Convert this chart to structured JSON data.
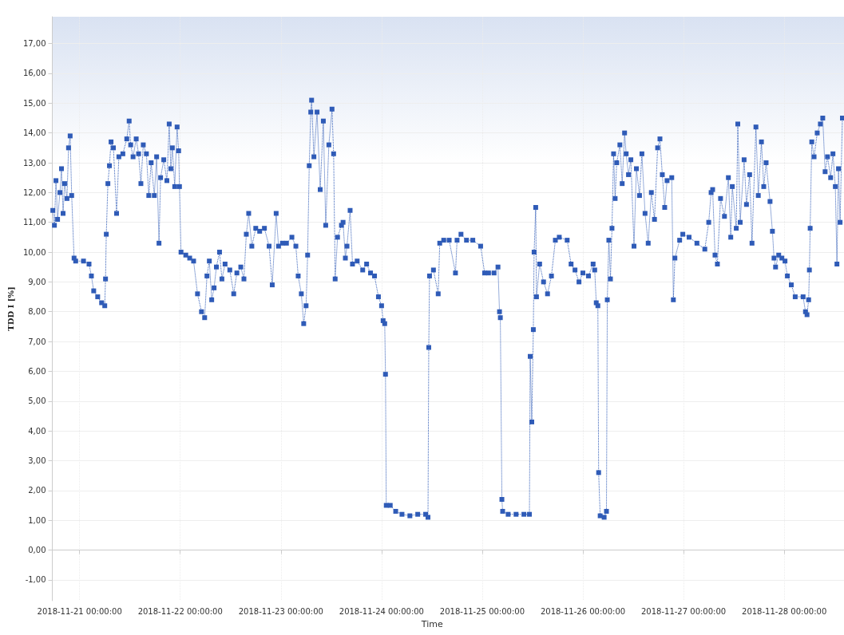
{
  "chart_data": {
    "type": "line",
    "xlabel": "Time",
    "ylabel": "TDD I [%]",
    "xlim": [
      "2018-11-20T17:30",
      "2018-11-28T14:15"
    ],
    "xticks": [
      {
        "value": "2018-11-21",
        "label": "2018-11-21 00:00:00"
      },
      {
        "value": "2018-11-22",
        "label": "2018-11-22 00:00:00"
      },
      {
        "value": "2018-11-23",
        "label": "2018-11-23 00:00:00"
      },
      {
        "value": "2018-11-24",
        "label": "2018-11-24 00:00:00"
      },
      {
        "value": "2018-11-25",
        "label": "2018-11-25 00:00:00"
      },
      {
        "value": "2018-11-26",
        "label": "2018-11-26 00:00:00"
      },
      {
        "value": "2018-11-27",
        "label": "2018-11-27 00:00:00"
      },
      {
        "value": "2018-11-28",
        "label": "2018-11-28 00:00:00"
      }
    ],
    "ylim": [
      -1.7,
      17.9
    ],
    "yticks": [
      {
        "value": -1,
        "label": "-1,00"
      },
      {
        "value": 0,
        "label": "0,00"
      },
      {
        "value": 1,
        "label": "1,00"
      },
      {
        "value": 2,
        "label": "2,00"
      },
      {
        "value": 3,
        "label": "3,00"
      },
      {
        "value": 4,
        "label": "4,00"
      },
      {
        "value": 5,
        "label": "5,00"
      },
      {
        "value": 6,
        "label": "6,00"
      },
      {
        "value": 7,
        "label": "7,00"
      },
      {
        "value": 8,
        "label": "8,00"
      },
      {
        "value": 9,
        "label": "9,00"
      },
      {
        "value": 10,
        "label": "10,00"
      },
      {
        "value": 11,
        "label": "11,00"
      },
      {
        "value": 12,
        "label": "12,00"
      },
      {
        "value": 13,
        "label": "13,00"
      },
      {
        "value": 14,
        "label": "14,00"
      },
      {
        "value": 15,
        "label": "15,00"
      },
      {
        "value": 16,
        "label": "16,00"
      },
      {
        "value": 17,
        "label": "17,00"
      }
    ],
    "grid": true,
    "marker": "square",
    "line_style": "dotted",
    "series": [
      {
        "color": "#2f5bb7",
        "x": [
          "2018-11-20T17:37",
          "2018-11-20T18:00",
          "2018-11-20T18:22",
          "2018-11-20T18:45",
          "2018-11-20T19:19",
          "2018-11-20T19:41",
          "2018-11-20T20:04",
          "2018-11-20T20:26",
          "2018-11-20T21:00",
          "2018-11-20T21:22",
          "2018-11-20T21:45",
          "2018-11-20T22:07",
          "2018-11-20T22:41",
          "2018-11-20T23:04",
          "2018-11-21T00:56",
          "2018-11-21T02:15",
          "2018-11-21T02:49",
          "2018-11-21T03:22",
          "2018-11-21T04:19",
          "2018-11-21T05:15",
          "2018-11-21T06:00",
          "2018-11-21T06:11",
          "2018-11-21T06:22",
          "2018-11-21T06:45",
          "2018-11-21T07:07",
          "2018-11-21T07:30",
          "2018-11-21T08:04",
          "2018-11-21T08:49",
          "2018-11-21T09:22",
          "2018-11-21T10:19",
          "2018-11-21T11:15",
          "2018-11-21T11:49",
          "2018-11-21T12:11",
          "2018-11-21T12:45",
          "2018-11-21T13:30",
          "2018-11-21T14:04",
          "2018-11-21T14:37",
          "2018-11-21T15:11",
          "2018-11-21T15:56",
          "2018-11-21T16:30",
          "2018-11-21T17:04",
          "2018-11-21T17:49",
          "2018-11-21T18:22",
          "2018-11-21T18:56",
          "2018-11-21T19:19",
          "2018-11-21T20:04",
          "2018-11-21T20:49",
          "2018-11-21T21:22",
          "2018-11-21T21:45",
          "2018-11-21T22:07",
          "2018-11-21T22:41",
          "2018-11-21T23:15",
          "2018-11-21T23:37",
          "2018-11-21T23:49",
          "2018-11-22T00:11",
          "2018-11-22T01:19",
          "2018-11-22T02:15",
          "2018-11-22T03:11",
          "2018-11-22T04:07",
          "2018-11-22T05:04",
          "2018-11-22T05:49",
          "2018-11-22T06:22",
          "2018-11-22T06:56",
          "2018-11-22T07:30",
          "2018-11-22T08:04",
          "2018-11-22T08:37",
          "2018-11-22T09:22",
          "2018-11-22T09:56",
          "2018-11-22T10:41",
          "2018-11-22T11:49",
          "2018-11-22T12:45",
          "2018-11-22T13:30",
          "2018-11-22T14:26",
          "2018-11-22T15:11",
          "2018-11-22T15:45",
          "2018-11-22T16:19",
          "2018-11-22T17:04",
          "2018-11-22T18:00",
          "2018-11-22T18:56",
          "2018-11-22T20:04",
          "2018-11-22T21:11",
          "2018-11-22T21:56",
          "2018-11-22T22:52",
          "2018-11-22T23:26",
          "2018-11-23T00:22",
          "2018-11-23T01:19",
          "2018-11-23T02:37",
          "2018-11-23T03:34",
          "2018-11-23T04:07",
          "2018-11-23T04:52",
          "2018-11-23T05:26",
          "2018-11-23T06:00",
          "2018-11-23T06:22",
          "2018-11-23T06:45",
          "2018-11-23T07:07",
          "2018-11-23T07:19",
          "2018-11-23T07:52",
          "2018-11-23T08:37",
          "2018-11-23T09:22",
          "2018-11-23T10:07",
          "2018-11-23T10:41",
          "2018-11-23T11:26",
          "2018-11-23T12:11",
          "2018-11-23T12:34",
          "2018-11-23T12:56",
          "2018-11-23T13:30",
          "2018-11-23T14:26",
          "2018-11-23T14:49",
          "2018-11-23T15:22",
          "2018-11-23T15:45",
          "2018-11-23T16:30",
          "2018-11-23T17:04",
          "2018-11-23T18:11",
          "2018-11-23T19:30",
          "2018-11-23T20:26",
          "2018-11-23T21:22",
          "2018-11-23T22:19",
          "2018-11-23T23:15",
          "2018-11-24T00:00",
          "2018-11-24T00:22",
          "2018-11-24T00:45",
          "2018-11-24T00:56",
          "2018-11-24T01:07",
          "2018-11-24T02:04",
          "2018-11-24T03:22",
          "2018-11-24T04:52",
          "2018-11-24T06:45",
          "2018-11-24T08:37",
          "2018-11-24T10:30",
          "2018-11-24T11:04",
          "2018-11-24T11:15",
          "2018-11-24T11:26",
          "2018-11-24T12:22",
          "2018-11-24T13:30",
          "2018-11-24T13:52",
          "2018-11-24T14:49",
          "2018-11-24T16:07",
          "2018-11-24T17:37",
          "2018-11-24T18:00",
          "2018-11-24T18:56",
          "2018-11-24T20:15",
          "2018-11-24T21:45",
          "2018-11-24T23:37",
          "2018-11-25T00:34",
          "2018-11-25T01:30",
          "2018-11-25T02:49",
          "2018-11-25T03:45",
          "2018-11-25T04:07",
          "2018-11-25T04:19",
          "2018-11-25T04:41",
          "2018-11-25T04:52",
          "2018-11-25T06:11",
          "2018-11-25T08:04",
          "2018-11-25T09:56",
          "2018-11-25T11:15",
          "2018-11-25T11:26",
          "2018-11-25T11:49",
          "2018-11-25T12:11",
          "2018-11-25T12:22",
          "2018-11-25T12:45",
          "2018-11-25T12:56",
          "2018-11-25T13:41",
          "2018-11-25T14:37",
          "2018-11-25T15:34",
          "2018-11-25T16:30",
          "2018-11-25T17:26",
          "2018-11-25T18:22",
          "2018-11-25T20:15",
          "2018-11-25T21:11",
          "2018-11-25T22:07",
          "2018-11-25T23:04",
          "2018-11-26T00:00",
          "2018-11-26T01:19",
          "2018-11-26T02:26",
          "2018-11-26T02:49",
          "2018-11-26T03:11",
          "2018-11-26T03:34",
          "2018-11-26T03:45",
          "2018-11-26T04:07",
          "2018-11-26T05:04",
          "2018-11-26T05:37",
          "2018-11-26T05:49",
          "2018-11-26T06:11",
          "2018-11-26T06:34",
          "2018-11-26T06:56",
          "2018-11-26T07:19",
          "2018-11-26T07:41",
          "2018-11-26T08:04",
          "2018-11-26T08:49",
          "2018-11-26T09:22",
          "2018-11-26T09:56",
          "2018-11-26T10:19",
          "2018-11-26T10:52",
          "2018-11-26T11:26",
          "2018-11-26T12:11",
          "2018-11-26T12:45",
          "2018-11-26T13:30",
          "2018-11-26T14:04",
          "2018-11-26T14:49",
          "2018-11-26T15:34",
          "2018-11-26T16:19",
          "2018-11-26T17:04",
          "2018-11-26T17:49",
          "2018-11-26T18:22",
          "2018-11-26T18:56",
          "2018-11-26T19:30",
          "2018-11-26T20:04",
          "2018-11-26T21:11",
          "2018-11-26T21:34",
          "2018-11-26T21:56",
          "2018-11-26T23:04",
          "2018-11-26T23:49",
          "2018-11-27T01:19",
          "2018-11-27T03:11",
          "2018-11-27T05:04",
          "2018-11-27T06:00",
          "2018-11-27T06:34",
          "2018-11-27T06:56",
          "2018-11-27T07:30",
          "2018-11-27T08:04",
          "2018-11-27T08:49",
          "2018-11-27T09:45",
          "2018-11-27T10:41",
          "2018-11-27T11:15",
          "2018-11-27T11:37",
          "2018-11-27T12:34",
          "2018-11-27T12:56",
          "2018-11-27T13:30",
          "2018-11-27T14:26",
          "2018-11-27T15:00",
          "2018-11-27T15:45",
          "2018-11-27T16:19",
          "2018-11-27T17:15",
          "2018-11-27T17:49",
          "2018-11-27T18:34",
          "2018-11-27T19:07",
          "2018-11-27T19:41",
          "2018-11-27T20:37",
          "2018-11-27T21:11",
          "2018-11-27T21:34",
          "2018-11-27T21:56",
          "2018-11-27T22:41",
          "2018-11-27T23:26",
          "2018-11-28T00:11",
          "2018-11-28T00:45",
          "2018-11-28T01:41",
          "2018-11-28T02:37",
          "2018-11-28T04:30",
          "2018-11-28T05:04",
          "2018-11-28T05:26",
          "2018-11-28T05:49",
          "2018-11-28T06:00",
          "2018-11-28T06:11",
          "2018-11-28T06:34",
          "2018-11-28T07:07",
          "2018-11-28T07:52",
          "2018-11-28T08:37",
          "2018-11-28T09:11",
          "2018-11-28T09:45",
          "2018-11-28T10:19",
          "2018-11-28T11:04",
          "2018-11-28T11:37",
          "2018-11-28T12:11",
          "2018-11-28T12:34",
          "2018-11-28T12:56",
          "2018-11-28T13:19",
          "2018-11-28T13:52"
        ],
        "values": [
          11.4,
          10.9,
          12.4,
          11.1,
          12.0,
          12.8,
          11.3,
          12.3,
          11.8,
          13.5,
          13.9,
          11.9,
          9.8,
          9.7,
          9.7,
          9.6,
          9.2,
          8.7,
          8.5,
          8.3,
          8.2,
          9.1,
          10.6,
          12.3,
          12.9,
          13.7,
          13.5,
          11.3,
          13.2,
          13.3,
          13.8,
          14.4,
          13.6,
          13.2,
          13.8,
          13.3,
          12.3,
          13.6,
          13.3,
          11.9,
          13.0,
          11.9,
          13.2,
          10.3,
          12.5,
          13.1,
          12.4,
          14.3,
          12.8,
          13.5,
          12.2,
          14.2,
          13.4,
          12.2,
          10.0,
          9.9,
          9.8,
          9.7,
          8.6,
          8.0,
          7.8,
          9.2,
          9.7,
          8.4,
          8.8,
          9.5,
          10.0,
          9.1,
          9.6,
          9.4,
          8.6,
          9.3,
          9.5,
          9.1,
          10.6,
          11.3,
          10.2,
          10.8,
          10.7,
          10.8,
          10.2,
          8.9,
          11.3,
          10.2,
          10.3,
          10.3,
          10.5,
          10.2,
          9.2,
          8.6,
          7.6,
          8.2,
          9.9,
          12.9,
          14.7,
          15.1,
          13.2,
          14.7,
          12.1,
          14.4,
          10.9,
          13.6,
          14.8,
          13.3,
          9.1,
          10.5,
          10.9,
          11.0,
          9.8,
          10.2,
          11.4,
          9.6,
          9.7,
          9.4,
          9.6,
          9.3,
          9.2,
          8.5,
          8.2,
          7.7,
          7.6,
          5.9,
          1.5,
          1.5,
          1.3,
          1.2,
          1.15,
          1.2,
          1.2,
          1.1,
          6.8,
          9.2,
          9.4,
          8.6,
          10.3,
          10.4,
          10.4,
          9.3,
          10.4,
          10.6,
          10.4,
          10.4,
          10.2,
          9.3,
          9.3,
          9.3,
          9.5,
          8.0,
          7.8,
          1.7,
          1.3,
          1.2,
          1.2,
          1.2,
          1.2,
          6.5,
          4.3,
          7.4,
          10.0,
          11.5,
          8.5,
          9.6,
          9.0,
          8.6,
          9.2,
          10.4,
          10.5,
          10.4,
          9.6,
          9.4,
          9.0,
          9.3,
          9.2,
          9.6,
          9.4,
          8.3,
          8.2,
          2.6,
          1.15,
          1.1,
          1.3,
          8.4,
          10.4,
          9.1,
          10.8,
          13.3,
          11.8,
          13.0,
          13.6,
          12.3,
          14.0,
          13.3,
          12.6,
          13.1,
          10.2,
          12.8,
          11.9,
          13.3,
          11.3,
          10.3,
          12.0,
          11.1,
          13.5,
          13.8,
          12.6,
          11.5,
          12.4,
          12.5,
          8.4,
          9.8,
          10.4,
          10.6,
          10.5,
          10.3,
          10.1,
          11.0,
          12.0,
          12.1,
          9.9,
          9.6,
          11.8,
          11.2,
          12.5,
          10.5,
          12.2,
          10.8,
          14.3,
          11.0,
          13.1,
          11.6,
          12.6,
          10.3,
          14.2,
          11.9,
          13.7,
          12.2,
          13.0,
          11.7,
          10.7,
          9.8,
          9.5,
          9.9,
          9.8,
          9.7,
          9.2,
          8.9,
          8.5,
          8.5,
          8.0,
          7.9,
          8.4,
          9.4,
          10.8,
          13.7,
          13.2,
          14.0,
          14.3,
          14.5,
          12.7,
          13.2,
          12.5,
          13.3,
          12.2,
          9.6,
          12.8,
          11.0,
          14.5
        ]
      }
    ]
  }
}
